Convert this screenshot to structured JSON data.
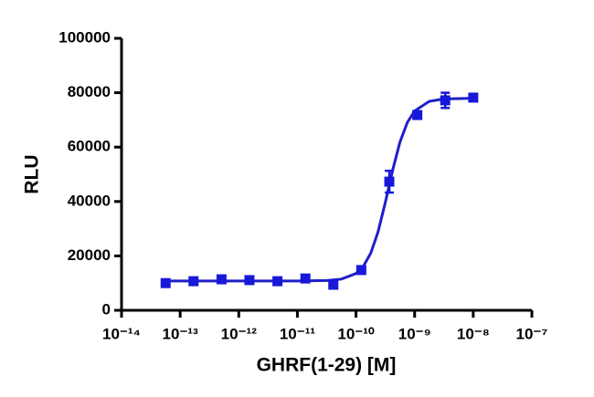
{
  "chart_data": {
    "type": "scatter",
    "xlabel": "GHRF(1-29) [M]",
    "ylabel": "RLU",
    "xscale": "log",
    "color": "#1818d8",
    "x": [
      5.65e-14,
      1.69e-13,
      5.08e-13,
      1.52e-12,
      4.57e-12,
      1.37e-11,
      4.1e-11,
      1.23e-10,
      3.7e-10,
      1.11e-09,
      3.33e-09,
      1e-08
    ],
    "values": [
      10000,
      10700,
      11400,
      11100,
      10700,
      11700,
      9400,
      14800,
      47300,
      71800,
      77200,
      78200
    ],
    "errors": [
      800,
      600,
      700,
      500,
      600,
      800,
      500,
      1200,
      4000,
      1200,
      2800,
      800
    ],
    "fit": {
      "type": "line",
      "color": "#1f1fc8",
      "x": [
        5.62e-14,
        1e-12,
        1e-11,
        3.16e-11,
        5.62e-11,
        1e-10,
        1.33e-10,
        1.78e-10,
        2.37e-10,
        3.16e-10,
        4.22e-10,
        5.62e-10,
        7.5e-10,
        1e-09,
        1.78e-09,
        3.16e-09,
        1e-08
      ],
      "values": [
        10800,
        10800,
        10800,
        10960,
        11470,
        13520,
        16160,
        20950,
        28760,
        39600,
        51540,
        61860,
        69040,
        73310,
        76830,
        77720,
        77980
      ]
    },
    "xlim": [
      1e-14,
      1e-07
    ],
    "xticks": [
      {
        "value": 1e-14,
        "label": "10⁻¹⁴"
      },
      {
        "value": 1e-13,
        "label": "10⁻¹³"
      },
      {
        "value": 1e-12,
        "label": "10⁻¹²"
      },
      {
        "value": 1e-11,
        "label": "10⁻¹¹"
      },
      {
        "value": 1e-10,
        "label": "10⁻¹⁰"
      },
      {
        "value": 1e-09,
        "label": "10⁻⁹"
      },
      {
        "value": 1e-08,
        "label": "10⁻⁸"
      },
      {
        "value": 1e-07,
        "label": "10⁻⁷"
      }
    ],
    "ylim": [
      0,
      100000
    ],
    "yticks": [
      0,
      20000,
      40000,
      60000,
      80000,
      100000
    ]
  }
}
